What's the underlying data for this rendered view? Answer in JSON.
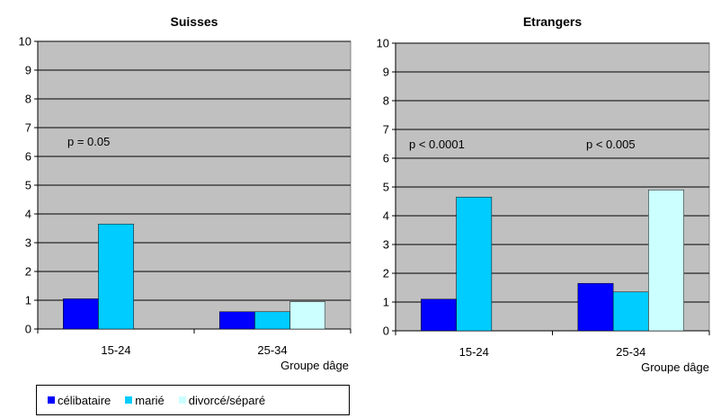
{
  "chart_data": [
    {
      "type": "bar",
      "title": "Suisses",
      "categories": [
        "15-24",
        "25-34"
      ],
      "xlabel": "Groupe dâge",
      "ylabel": "",
      "ylim": [
        0,
        10
      ],
      "yticks": [
        "0",
        "1",
        "2",
        "3",
        "4",
        "5",
        "6",
        "7",
        "8",
        "9",
        "10"
      ],
      "grid": true,
      "series": [
        {
          "name": "célibataire",
          "color": "#0000ff",
          "values": [
            1.05,
            0.6
          ]
        },
        {
          "name": "marié",
          "color": "#00ccff",
          "values": [
            3.65,
            0.6
          ]
        },
        {
          "name": "divorcé/séparé",
          "color": "#ccffff",
          "values": [
            0,
            0.95
          ]
        }
      ],
      "annotations": [
        {
          "text": "p = 0.05",
          "category": "15-24"
        }
      ]
    },
    {
      "type": "bar",
      "title": "Etrangers",
      "categories": [
        "15-24",
        "25-34"
      ],
      "xlabel": "Groupe dâge",
      "ylabel": "",
      "ylim": [
        0,
        10
      ],
      "yticks": [
        "0",
        "1",
        "2",
        "3",
        "4",
        "5",
        "6",
        "7",
        "8",
        "9",
        "10"
      ],
      "grid": true,
      "series": [
        {
          "name": "célibataire",
          "color": "#0000ff",
          "values": [
            1.1,
            1.65
          ]
        },
        {
          "name": "marié",
          "color": "#00ccff",
          "values": [
            4.65,
            1.35
          ]
        },
        {
          "name": "divorcé/séparé",
          "color": "#ccffff",
          "values": [
            0,
            4.9
          ]
        }
      ],
      "annotations": [
        {
          "text": "p < 0.0001",
          "category": "15-24"
        },
        {
          "text": "p < 0.005",
          "category": "25-34"
        }
      ]
    }
  ],
  "legend": {
    "placement": "bottom-left",
    "items": [
      {
        "label": "célibataire",
        "color": "#0000ff"
      },
      {
        "label": "marié",
        "color": "#00ccff"
      },
      {
        "label": "divorcé/séparé",
        "color": "#ccffff"
      }
    ]
  },
  "plot_background": "#c0c0c0"
}
